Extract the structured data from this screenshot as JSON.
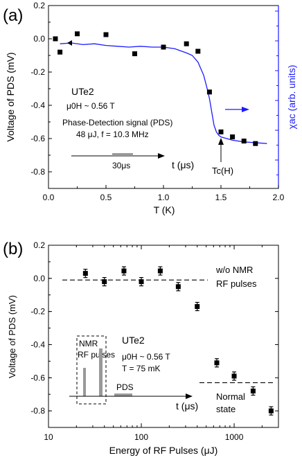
{
  "chart_data": [
    {
      "type": "scatter",
      "panel_label": "(a)",
      "title": "",
      "xlabel": "T (K)",
      "ylabel": "Voltage of PDS (mV)",
      "y2label": "χac (arb. units)",
      "xlim": [
        0.0,
        2.0
      ],
      "ylim": [
        -0.9,
        0.2
      ],
      "xticks": [
        "0.0",
        "0.5",
        "1.0",
        "1.5",
        "2.0"
      ],
      "yticks": [
        "-0.8",
        "-0.6",
        "-0.4",
        "-0.2",
        "0.0",
        "0.2"
      ],
      "grid": false,
      "series": [
        {
          "kind": "scatter",
          "marker": "square",
          "color": "#000000",
          "x": [
            0.06,
            0.1,
            0.25,
            0.5,
            0.75,
            1.0,
            1.2,
            1.3,
            1.4,
            1.5,
            1.6,
            1.7,
            1.8
          ],
          "y": [
            0.0,
            -0.08,
            0.03,
            0.025,
            -0.09,
            -0.05,
            -0.03,
            -0.075,
            -0.32,
            -0.56,
            -0.59,
            -0.615,
            -0.63
          ]
        },
        {
          "kind": "line",
          "axis": "right",
          "color": "#1a1aff",
          "x": [
            0.1,
            0.2,
            0.3,
            0.4,
            0.5,
            0.6,
            0.7,
            0.8,
            0.9,
            1.0,
            1.1,
            1.2,
            1.25,
            1.3,
            1.35,
            1.38,
            1.4,
            1.42,
            1.44,
            1.46,
            1.48,
            1.5,
            1.55,
            1.6,
            1.7,
            1.8,
            1.9
          ],
          "y": [
            -0.03,
            -0.025,
            -0.035,
            -0.03,
            -0.04,
            -0.045,
            -0.05,
            -0.045,
            -0.05,
            -0.05,
            -0.06,
            -0.085,
            -0.1,
            -0.14,
            -0.22,
            -0.3,
            -0.36,
            -0.44,
            -0.52,
            -0.56,
            -0.58,
            -0.59,
            -0.6,
            -0.61,
            -0.62,
            -0.625,
            -0.63
          ]
        }
      ],
      "annotations": {
        "sample": "UTe2",
        "field": "μ0H ~ 0.56 T",
        "signal": "Phase-Detection signal (PDS)",
        "params": "48 μJ,  f = 10.3 MHz",
        "pulse_width": "30μs",
        "time_axis": "t (μs)",
        "tc": "Tc(H)"
      }
    },
    {
      "type": "scatter",
      "panel_label": "(b)",
      "title": "",
      "xlabel": "Energy of RF Pulses (μJ)",
      "ylabel": "Voltage of PDS (mV)",
      "xscale": "log",
      "xlim": [
        10,
        3000
      ],
      "ylim": [
        -0.9,
        0.2
      ],
      "xticks": [
        "10",
        "100",
        "1000"
      ],
      "yticks": [
        "-0.8",
        "-0.6",
        "-0.4",
        "-0.2",
        "0.0",
        "0.2"
      ],
      "grid": false,
      "series": [
        {
          "kind": "scatter",
          "marker": "square",
          "error_bars": true,
          "color": "#000000",
          "x": [
            25,
            40,
            65,
            100,
            160,
            250,
            400,
            650,
            1000,
            1600,
            2500
          ],
          "y": [
            0.03,
            -0.02,
            0.045,
            -0.02,
            0.045,
            -0.05,
            -0.17,
            -0.51,
            -0.59,
            -0.68,
            -0.8
          ]
        }
      ],
      "reference_lines": [
        {
          "label": "w/o NMR RF pulses",
          "y": -0.01
        },
        {
          "label": "Normal state",
          "y": -0.63
        }
      ],
      "annotations": {
        "label_wo_1": "w/o  NMR",
        "label_wo_2": "RF pulses",
        "normal_1": "Normal",
        "normal_2": "state",
        "sample": "UTe2",
        "field": "μ0H ~ 0.56 T",
        "temperature": "T = 75 mK",
        "nmr_1": "NMR",
        "nmr_2": "RF pulses",
        "pds": "PDS",
        "time_axis": "t (μs)"
      }
    }
  ]
}
